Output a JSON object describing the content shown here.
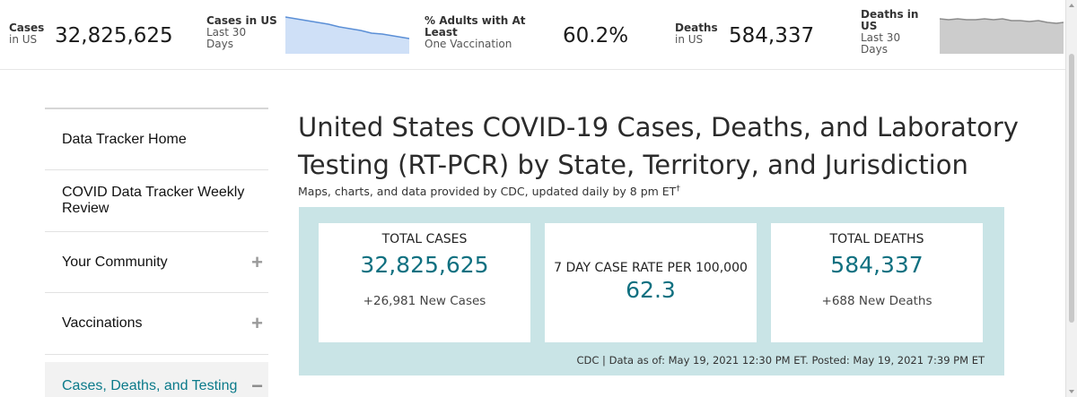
{
  "topbar": {
    "cases": {
      "label_bold": "Cases",
      "label_sub": "in US",
      "value": "32,825,625"
    },
    "cases_30": {
      "label_bold": "Cases in US",
      "label_sub1": "Last 30",
      "label_sub2": "Days"
    },
    "vaccination": {
      "label_bold1": "% Adults with At",
      "label_bold2": "Least",
      "label_sub": "One Vaccination",
      "value": "60.2%"
    },
    "deaths": {
      "label_bold": "Deaths",
      "label_sub": "in US",
      "value": "584,337"
    },
    "deaths_30": {
      "label_bold1": "Deaths in",
      "label_bold2": "US",
      "label_sub1": "Last 30",
      "label_sub2": "Days"
    }
  },
  "sidebar": {
    "items": [
      {
        "label": "Data Tracker Home",
        "expander": ""
      },
      {
        "label": "COVID Data Tracker Weekly Review",
        "expander": ""
      },
      {
        "label": "Your Community",
        "expander": "+"
      },
      {
        "label": "Vaccinations",
        "expander": "+"
      },
      {
        "label": "Cases, Deaths, and Testing",
        "expander": "−"
      }
    ]
  },
  "main": {
    "title": "United States COVID-19 Cases, Deaths, and Laboratory Testing (RT-PCR) by State, Territory, and Jurisdiction",
    "subtitle": "Maps, charts, and data provided by CDC, updated daily by 8 pm ET",
    "subtitle_mark": "†",
    "cards": [
      {
        "title": "TOTAL CASES",
        "value": "32,825,625",
        "sub": "+26,981 New Cases"
      },
      {
        "title": "7 DAY CASE RATE PER 100,000",
        "value": "62.3",
        "sub": ""
      },
      {
        "title": "TOTAL DEATHS",
        "value": "584,337",
        "sub": "+688 New Deaths"
      }
    ],
    "source": "CDC | Data as of: May 19, 2021 12:30 PM ET. Posted: May 19, 2021 7:39 PM ET"
  },
  "colors": {
    "accent": "#0f7080",
    "panel": "#c9e4e6",
    "cases_spark": "#5b8fd6",
    "deaths_spark": "#8c8c8c"
  }
}
